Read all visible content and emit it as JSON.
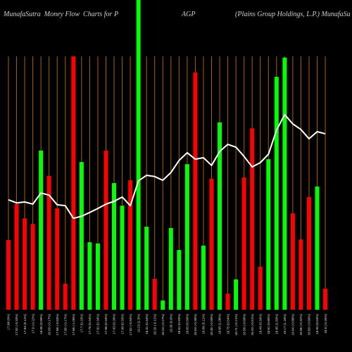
{
  "chart_data": {
    "type": "bar",
    "title": {
      "left": "MunafaSutra  Money Flow  Charts for P",
      "center": "AGP",
      "right": "(Plains Group Holdings, L.P.) MunafaSu"
    },
    "xlabel": "",
    "ylabel": "",
    "ylim": [
      0,
      100
    ],
    "grid": "vertical",
    "legend": "none",
    "colors": {
      "background": "#000000",
      "title": "#cfcfcf",
      "tick": "#e0e0e0",
      "grid": "#a86400",
      "line": "#ffffff"
    },
    "categories": [
      "17.98 (0%)",
      "17.92 (-0.33%)",
      "17.94 (0.11%)",
      "17.9 (-0.22%)",
      "18.06 (0.89%)",
      "18.03 (-0.17%)",
      "17.88 (-0.83%)",
      "17.85 (-0.17%)",
      "17.66 (-1.06%)",
      "17.7 (0.23%)",
      "17.76 (0.34%)",
      "17.82 (0.34%)",
      "17.88 (0.34%)",
      "17.93 (0.28%)",
      "17.99 (0.33%)",
      "17.82 (-0.94%)",
      "18.23 (2.3%)",
      "18.31 (0.44%)",
      "18.29 (-0.11%)",
      "18.24 (-0.27%)",
      "18.35 (0.6%)",
      "18.52 (0.93%)",
      "18.63 (0.59%)",
      "18.54 (-0.48%)",
      "18.56 (0.11%)",
      "18.45 (-0.59%)",
      "18.65 (1.08%)",
      "18.75 (0.54%)",
      "18.71 (-0.21%)",
      "18.58 (-0.69%)",
      "18.43 (-0.81%)",
      "18.49 (0.33%)",
      "18.61 (0.65%)",
      "18.95 (1.83%)",
      "19.17 (1.16%)",
      "19.04 (-0.68%)",
      "18.96 (-0.42%)",
      "18.83 (-0.69%)",
      "18.93 (0.53%)",
      "18.9 (-0.16%)"
    ],
    "series": [
      {
        "type": "bar",
        "values": [
          22.5,
          34.1,
          29.5,
          27.7,
          51.4,
          43.2,
          32.7,
          8.4,
          81.8,
          47.7,
          21.8,
          21.4,
          51.4,
          40.9,
          33.6,
          41.8,
          100,
          26.8,
          10.0,
          3.0,
          26.4,
          19.3,
          47.0,
          76.6,
          20.7,
          42.3,
          60.5,
          5.2,
          9.8,
          42.7,
          58.6,
          13.9,
          48.6,
          75.2,
          81.4,
          31.1,
          22.7,
          36.4,
          39.8,
          6.8
        ],
        "bar_colors": [
          "#ff0000",
          "#ff0000",
          "#ff0000",
          "#ff0000",
          "#00ff00",
          "#ff0000",
          "#ff0000",
          "#ff0000",
          "#ff0000",
          "#00ff00",
          "#00ff00",
          "#00ff00",
          "#ff0000",
          "#00ff00",
          "#00ff00",
          "#ff0000",
          "#00ff00",
          "#00ff00",
          "#ff0000",
          "#00ff00",
          "#00ff00",
          "#00ff00",
          "#00ff00",
          "#ff0000",
          "#00ff00",
          "#ff0000",
          "#00ff00",
          "#ff0000",
          "#00ff00",
          "#ff0000",
          "#ff0000",
          "#ff0000",
          "#00ff00",
          "#00ff00",
          "#00ff00",
          "#ff0000",
          "#ff0000",
          "#ff0000",
          "#00ff00",
          "#ff0000"
        ]
      },
      {
        "type": "line",
        "values": [
          35.5,
          34.5,
          34.8,
          34.1,
          37.7,
          37.0,
          33.9,
          33.6,
          29.5,
          30.2,
          31.4,
          32.7,
          34.1,
          35.0,
          36.4,
          33.6,
          41.6,
          43.4,
          43.0,
          41.8,
          44.3,
          48.2,
          50.7,
          48.6,
          49.1,
          46.6,
          51.1,
          53.4,
          52.5,
          49.5,
          46.1,
          47.5,
          50.2,
          58.0,
          63.0,
          60.0,
          58.2,
          55.2,
          57.5,
          56.8
        ]
      }
    ]
  }
}
